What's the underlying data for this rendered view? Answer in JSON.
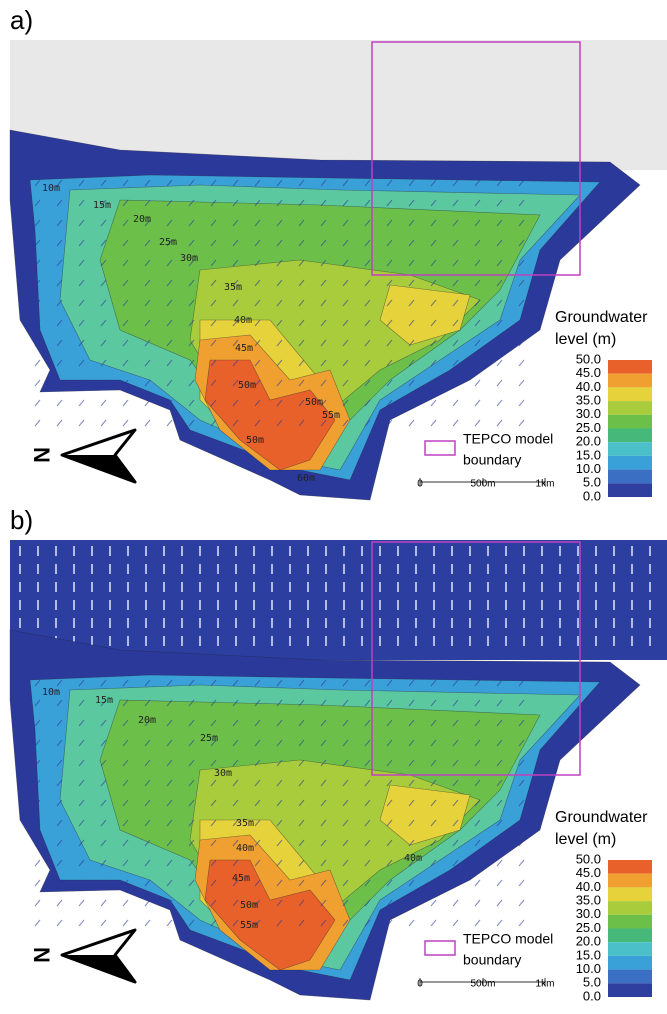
{
  "panels": [
    {
      "label": "a)",
      "legend_title": [
        "Groundwater",
        "level (m)"
      ],
      "colorbar_ticks": [
        "50.0",
        "45.0",
        "40.0",
        "35.0",
        "30.0",
        "25.0",
        "20.0",
        "15.0",
        "10.0",
        "5.0",
        "0.0"
      ],
      "boundary_legend": [
        "TEPCO model",
        "boundary"
      ],
      "scale_labels": [
        "0",
        "500m",
        "1km"
      ],
      "north": "N",
      "contour_labels": [
        "10m",
        "15m",
        "20m",
        "25m",
        "30m",
        "35m",
        "40m",
        "45m",
        "50m",
        "50m",
        "55m",
        "50m",
        "60m"
      ]
    },
    {
      "label": "b)",
      "legend_title": [
        "Groundwater",
        "level (m)"
      ],
      "colorbar_ticks": [
        "50.0",
        "45.0",
        "40.0",
        "35.0",
        "30.0",
        "25.0",
        "20.0",
        "15.0",
        "10.0",
        "5.0",
        "0.0"
      ],
      "boundary_legend": [
        "TEPCO model",
        "boundary"
      ],
      "scale_labels": [
        "0",
        "500m",
        "1km"
      ],
      "north": "N",
      "contour_labels": [
        "10m",
        "15m",
        "20m",
        "25m",
        "30m",
        "35m",
        "40m",
        "45m",
        "50m",
        "55m",
        "40m"
      ]
    }
  ]
}
